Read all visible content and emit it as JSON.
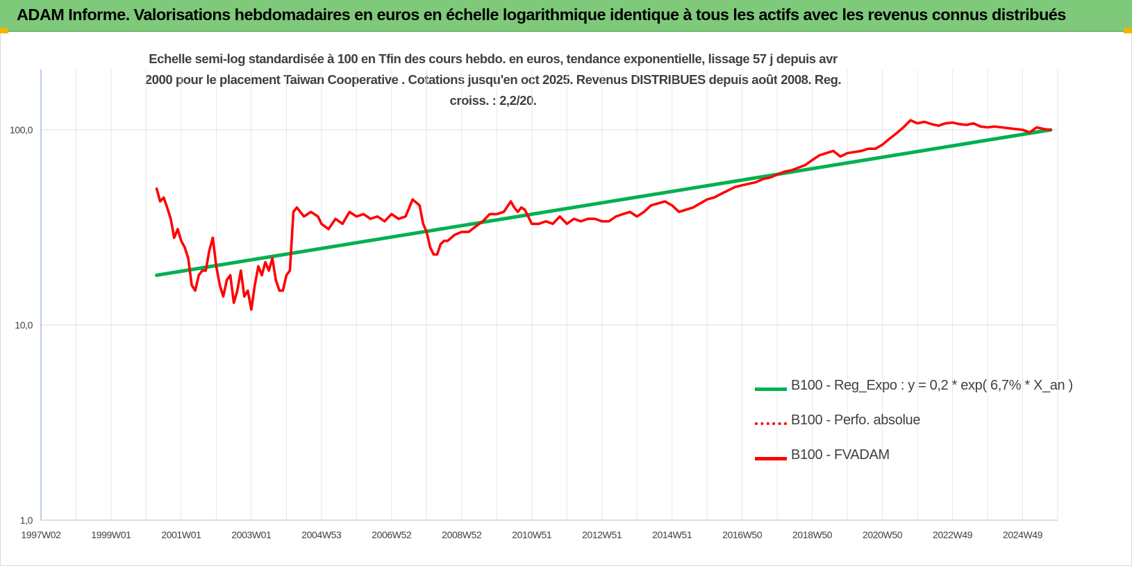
{
  "header": {
    "title": "ADAM Informe. Valorisations hebdomadaires en euros en échelle logarithmique identique à tous les actifs avec les revenus connus distribués"
  },
  "chart_data": {
    "type": "line",
    "title": "Echelle semi-log standardisée à 100 en Tfin des cours hebdo. en euros, tendance exponentielle, lissage 57 j depuis avr 2000 pour le placement Taiwan Cooperative . Cotations jusqu'en oct 2025. Revenus DISTRIBUES depuis août 2008. Reg. croiss. : 2,2/20.",
    "y_scale": "log",
    "ylim": [
      1,
      200
    ],
    "y_ticks": [
      {
        "value": 1,
        "label": "1,0"
      },
      {
        "value": 10,
        "label": "10,0"
      },
      {
        "value": 100,
        "label": "100,0"
      }
    ],
    "xlim": [
      1997.0,
      2026.0
    ],
    "x_ticks": [
      "1997W02",
      "1999W01",
      "2001W01",
      "2003W01",
      "2004W53",
      "2006W52",
      "2008W52",
      "2010W51",
      "2012W51",
      "2014W51",
      "2016W50",
      "2018W50",
      "2020W50",
      "2022W49",
      "2024W49"
    ],
    "x_gridlines": [
      1997.0,
      1998.0,
      1999.0,
      2000.0,
      2001.0,
      2002.0,
      2003.0,
      2004.0,
      2005.0,
      2006.0,
      2007.0,
      2008.0,
      2009.0,
      2010.0,
      2011.0,
      2012.0,
      2013.0,
      2014.0,
      2015.0,
      2016.0,
      2017.0,
      2018.0,
      2019.0,
      2020.0,
      2021.0,
      2022.0,
      2023.0,
      2024.0,
      2025.0,
      2026.0
    ],
    "grid": true,
    "legend_position": "bottom-right",
    "series": [
      {
        "name": "B100 - Reg_Expo : y = 0,2 * exp( 6,7% *  X_an )",
        "color": "#00b050",
        "style": "solid",
        "x": [
          2000.3,
          2025.8
        ],
        "y": [
          18,
          100
        ]
      },
      {
        "name": "B100 - Perfo. absolue",
        "color": "#ff0000",
        "style": "dotted",
        "x": [],
        "y": []
      },
      {
        "name": "B100 - FVADAM",
        "color": "#ff0000",
        "style": "solid",
        "x": [
          2000.3,
          2000.4,
          2000.5,
          2000.6,
          2000.7,
          2000.8,
          2000.9,
          2001.0,
          2001.1,
          2001.2,
          2001.3,
          2001.4,
          2001.5,
          2001.6,
          2001.7,
          2001.8,
          2001.9,
          2002.0,
          2002.1,
          2002.2,
          2002.3,
          2002.4,
          2002.5,
          2002.6,
          2002.7,
          2002.8,
          2002.9,
          2003.0,
          2003.1,
          2003.2,
          2003.3,
          2003.4,
          2003.5,
          2003.6,
          2003.7,
          2003.8,
          2003.9,
          2004.0,
          2004.1,
          2004.2,
          2004.3,
          2004.5,
          2004.7,
          2004.9,
          2005.0,
          2005.2,
          2005.4,
          2005.6,
          2005.8,
          2006.0,
          2006.2,
          2006.4,
          2006.6,
          2006.8,
          2007.0,
          2007.2,
          2007.4,
          2007.6,
          2007.8,
          2007.9,
          2008.0,
          2008.1,
          2008.2,
          2008.3,
          2008.4,
          2008.5,
          2008.6,
          2008.8,
          2009.0,
          2009.2,
          2009.4,
          2009.6,
          2009.8,
          2010.0,
          2010.2,
          2010.4,
          2010.5,
          2010.6,
          2010.7,
          2010.8,
          2011.0,
          2011.2,
          2011.4,
          2011.6,
          2011.8,
          2012.0,
          2012.2,
          2012.4,
          2012.6,
          2012.8,
          2013.0,
          2013.2,
          2013.4,
          2013.6,
          2013.8,
          2014.0,
          2014.2,
          2014.4,
          2014.6,
          2014.8,
          2015.0,
          2015.2,
          2015.4,
          2015.6,
          2015.8,
          2016.0,
          2016.2,
          2016.4,
          2016.6,
          2016.8,
          2017.0,
          2017.2,
          2017.4,
          2017.6,
          2017.8,
          2018.0,
          2018.2,
          2018.4,
          2018.6,
          2018.8,
          2019.0,
          2019.2,
          2019.4,
          2019.6,
          2019.8,
          2020.0,
          2020.2,
          2020.4,
          2020.6,
          2020.8,
          2021.0,
          2021.2,
          2021.4,
          2021.6,
          2021.8,
          2022.0,
          2022.2,
          2022.4,
          2022.6,
          2022.8,
          2023.0,
          2023.2,
          2023.4,
          2023.6,
          2023.8,
          2024.0,
          2024.2,
          2024.4,
          2024.6,
          2024.8,
          2025.0,
          2025.2,
          2025.4,
          2025.6,
          2025.8
        ],
        "y": [
          50,
          43,
          45,
          40,
          35,
          28,
          31,
          27,
          25,
          22,
          16,
          15,
          18,
          19,
          19,
          24,
          28,
          20,
          16,
          14,
          17,
          18,
          13,
          15,
          19,
          14,
          15,
          12,
          16,
          20,
          18,
          21,
          19,
          22,
          17,
          15,
          15,
          18,
          19,
          38,
          40,
          36,
          38,
          36,
          33,
          31,
          35,
          33,
          38,
          36,
          37,
          35,
          36,
          34,
          37,
          35,
          36,
          44,
          41,
          33,
          30,
          25,
          23,
          23,
          26,
          27,
          27,
          29,
          30,
          30,
          32,
          34,
          37,
          37,
          38,
          43,
          40,
          38,
          40,
          39,
          33,
          33,
          34,
          33,
          36,
          33,
          35,
          34,
          35,
          35,
          34,
          34,
          36,
          37,
          38,
          36,
          38,
          41,
          42,
          43,
          41,
          38,
          39,
          40,
          42,
          44,
          45,
          47,
          49,
          51,
          52,
          53,
          54,
          56,
          57,
          59,
          61,
          62,
          64,
          66,
          70,
          74,
          76,
          78,
          73,
          76,
          77,
          78,
          80,
          80,
          84,
          90,
          96,
          103,
          112,
          108,
          110,
          107,
          105,
          108,
          109,
          107,
          106,
          108,
          104,
          103,
          104,
          103,
          102,
          101,
          100,
          97,
          103,
          101,
          100
        ]
      }
    ]
  }
}
